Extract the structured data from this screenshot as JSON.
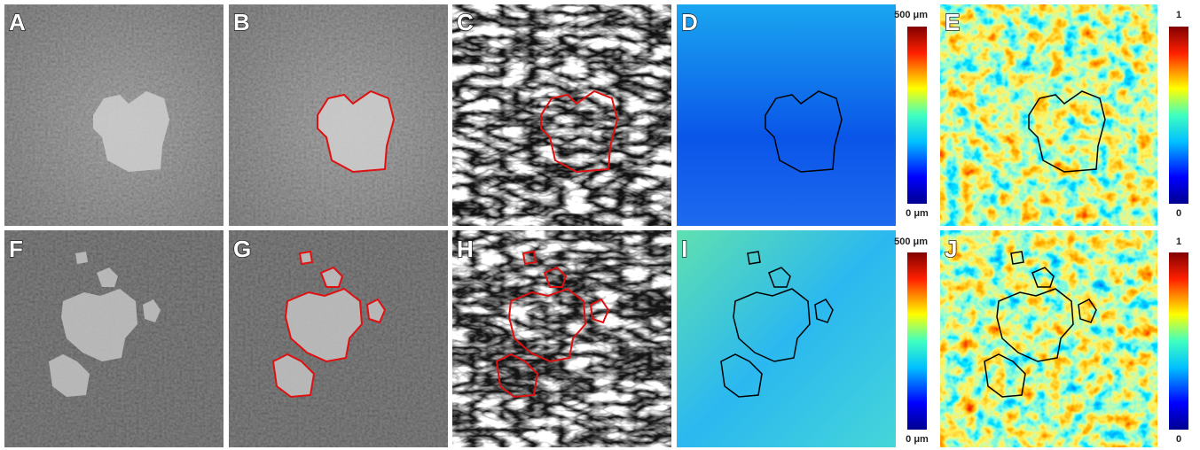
{
  "panels": [
    {
      "label": "A"
    },
    {
      "label": "B"
    },
    {
      "label": "C"
    },
    {
      "label": "D"
    },
    {
      "label": "E"
    },
    {
      "label": "F"
    },
    {
      "label": "G"
    },
    {
      "label": "H"
    },
    {
      "label": "I"
    },
    {
      "label": "J"
    }
  ],
  "colorbars": [
    {
      "max_label": "500 μm",
      "min_label": "0 μm"
    },
    {
      "max_label": "1",
      "min_label": "0"
    },
    {
      "max_label": "500 μm",
      "min_label": "0 μm"
    },
    {
      "max_label": "1",
      "min_label": "0"
    }
  ]
}
